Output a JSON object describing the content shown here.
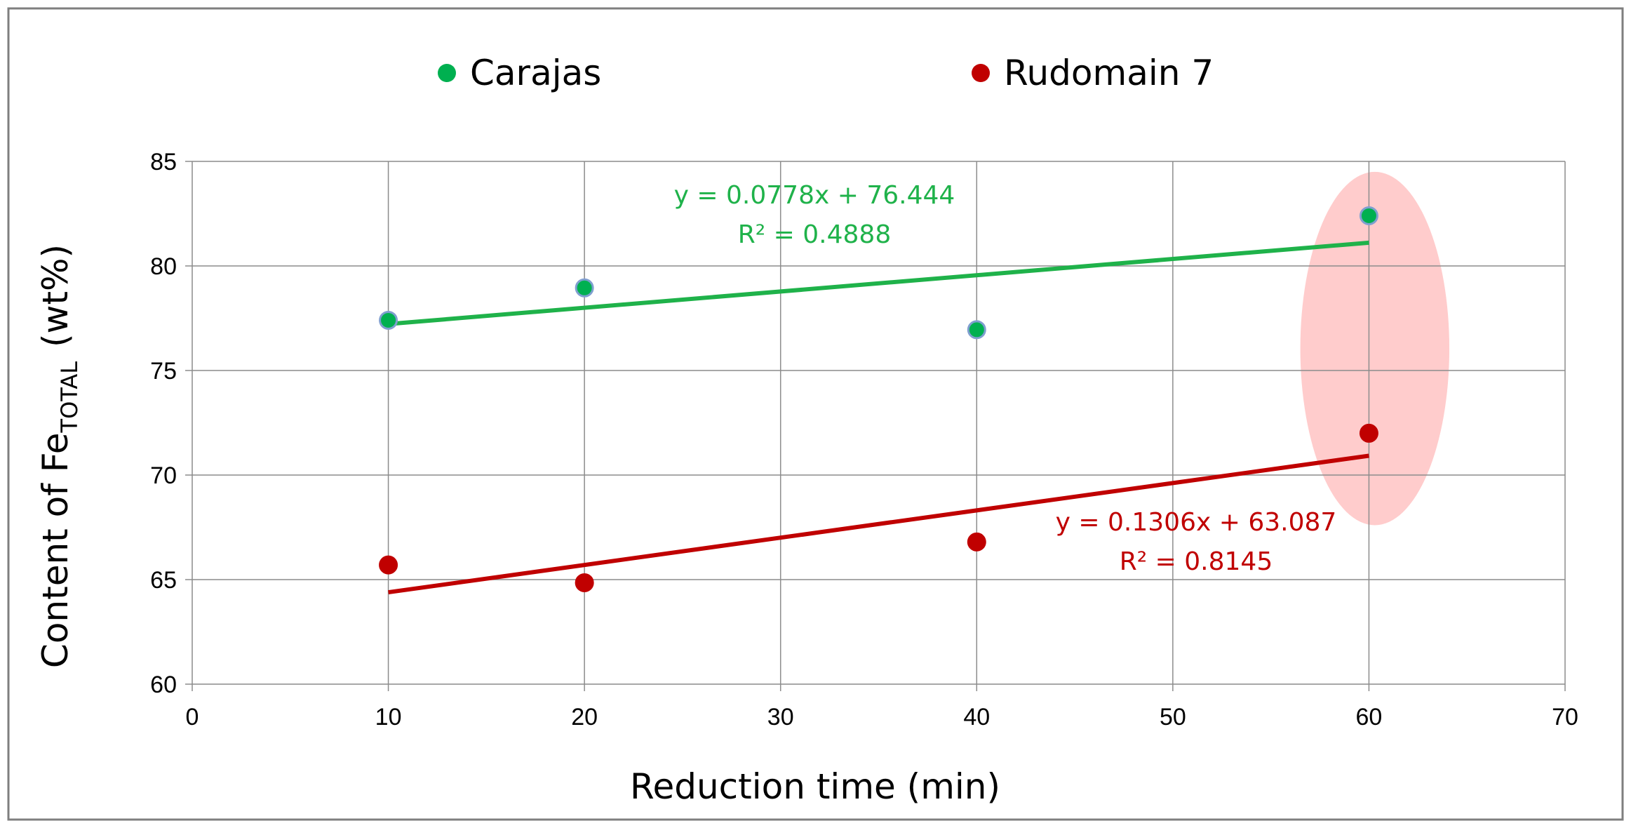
{
  "chart_data": {
    "type": "scatter",
    "title": "",
    "xlabel": "Reduction time (min)",
    "ylabel": {
      "prefix": "Content of  Fe",
      "subscript": "TOTAL",
      "suffix": "(wt%)"
    },
    "xlim": [
      0,
      70
    ],
    "ylim": [
      60,
      85
    ],
    "xticks": [
      0,
      10,
      20,
      30,
      40,
      50,
      60,
      70
    ],
    "yticks": [
      60,
      65,
      70,
      75,
      80,
      85
    ],
    "xtick_labels": [
      "0",
      "10",
      "20",
      "30",
      "40",
      "50",
      "60",
      "70"
    ],
    "ytick_labels": [
      "60",
      "65",
      "70",
      "75",
      "80",
      "85"
    ],
    "grid": true,
    "legend_position": "top",
    "series": [
      {
        "name": "Carajas",
        "color": "#00B050",
        "marker_edge": "#7F9FCF",
        "points": [
          {
            "x": 10,
            "y": 77.4
          },
          {
            "x": 20,
            "y": 78.95
          },
          {
            "x": 40,
            "y": 76.95
          },
          {
            "x": 60,
            "y": 82.4
          }
        ],
        "trendline": {
          "slope": 0.0778,
          "intercept": 76.444,
          "x_range": [
            10,
            60
          ],
          "color": "#1FB24A",
          "equation_label": "y = 0.0778x + 76.444",
          "r2_label": "R² = 0.4888"
        }
      },
      {
        "name": "Rudomain 7",
        "color": "#C00000",
        "marker_edge": "#C00000",
        "points": [
          {
            "x": 10,
            "y": 65.7
          },
          {
            "x": 20,
            "y": 64.85
          },
          {
            "x": 40,
            "y": 66.8
          },
          {
            "x": 60,
            "y": 72.0
          }
        ],
        "trendline": {
          "slope": 0.1306,
          "intercept": 63.087,
          "x_range": [
            10,
            60
          ],
          "color": "#C00000",
          "equation_label": "y = 0.1306x + 63.087",
          "r2_label": "R² = 0.8145"
        }
      }
    ],
    "annotations": [
      {
        "type": "ellipse-highlight",
        "center_x": 60.3,
        "center_y": 76.05,
        "radius_x": 3.8,
        "radius_y": 8.45,
        "color": "#FFCCCC"
      }
    ]
  }
}
